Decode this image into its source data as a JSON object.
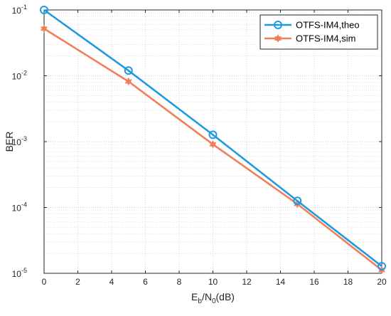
{
  "chart_data": {
    "type": "line",
    "title": "",
    "xlabel": "E_b/N_0(dB)",
    "xlabel_parts": {
      "main": "E",
      "sub1": "b",
      "mid": "/N",
      "sub2": "0",
      "tail": "(dB)"
    },
    "ylabel": "BER",
    "x_scale": "linear",
    "y_scale": "log",
    "xlim": [
      0,
      20
    ],
    "ylim": [
      1e-05,
      0.1
    ],
    "x_ticks": [
      0,
      2,
      4,
      6,
      8,
      10,
      12,
      14,
      16,
      18,
      20
    ],
    "y_ticks": [
      {
        "base": "10",
        "exp": "-5",
        "value": 1e-05
      },
      {
        "base": "10",
        "exp": "-4",
        "value": 0.0001
      },
      {
        "base": "10",
        "exp": "-3",
        "value": 0.001
      },
      {
        "base": "10",
        "exp": "-2",
        "value": 0.01
      },
      {
        "base": "10",
        "exp": "-1",
        "value": 0.1
      }
    ],
    "grid": true,
    "legend_position": "top-right",
    "series": [
      {
        "name": "OTFS-IM4,theo",
        "color": "#1f9ae0",
        "marker": "circle",
        "x": [
          0,
          5,
          10,
          15,
          20
        ],
        "y": [
          0.1,
          0.012,
          0.00127,
          0.000126,
          1.28e-05
        ]
      },
      {
        "name": "OTFS-IM4,sim",
        "color": "#f07f5a",
        "marker": "star",
        "x": [
          0,
          5,
          10,
          15,
          20
        ],
        "y": [
          0.052,
          0.0082,
          0.00091,
          0.000113,
          1.12e-05
        ]
      }
    ]
  }
}
